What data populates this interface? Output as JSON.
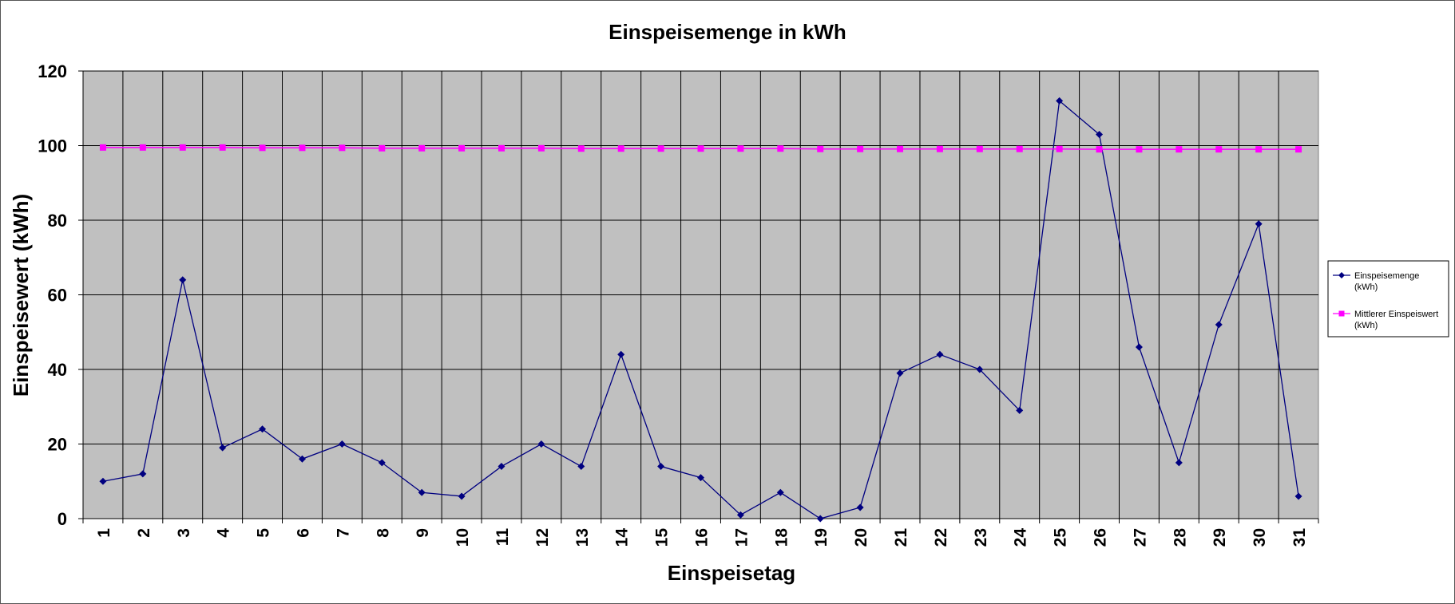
{
  "chart_data": {
    "type": "line",
    "title": "Einspeisemenge in kWh",
    "xlabel": "Einspeisetag",
    "ylabel": "Einspeisewert  (kWh)",
    "ylim": [
      0,
      120
    ],
    "yticks": [
      0,
      20,
      40,
      60,
      80,
      100,
      120
    ],
    "grid": true,
    "legend_position": "right",
    "plot_background": "#c0c0c0",
    "categories": [
      "1",
      "2",
      "3",
      "4",
      "5",
      "6",
      "7",
      "8",
      "9",
      "10",
      "11",
      "12",
      "13",
      "14",
      "15",
      "16",
      "17",
      "18",
      "19",
      "20",
      "21",
      "22",
      "23",
      "24",
      "25",
      "26",
      "27",
      "28",
      "29",
      "30",
      "31"
    ],
    "series": [
      {
        "name": [
          "Einspeisemenge",
          "(kWh)"
        ],
        "color": "#000080",
        "marker": "diamond",
        "values": [
          10,
          12,
          64,
          19,
          24,
          16,
          20,
          15,
          7,
          6,
          14,
          20,
          14,
          44,
          14,
          11,
          1,
          7,
          0,
          3,
          39,
          44,
          40,
          29,
          112,
          103,
          46,
          15,
          52,
          79,
          6
        ]
      },
      {
        "name": [
          "Mittlerer Einspeiswert",
          "(kWh)"
        ],
        "color": "#ff00ff",
        "marker": "square",
        "values": [
          99.5,
          99.5,
          99.5,
          99.5,
          99.4,
          99.4,
          99.4,
          99.3,
          99.3,
          99.3,
          99.3,
          99.3,
          99.2,
          99.2,
          99.2,
          99.2,
          99.2,
          99.2,
          99.1,
          99.1,
          99.1,
          99.1,
          99.1,
          99.1,
          99.1,
          99.0,
          99.0,
          99.0,
          99.0,
          99.0,
          99.0
        ]
      }
    ]
  }
}
